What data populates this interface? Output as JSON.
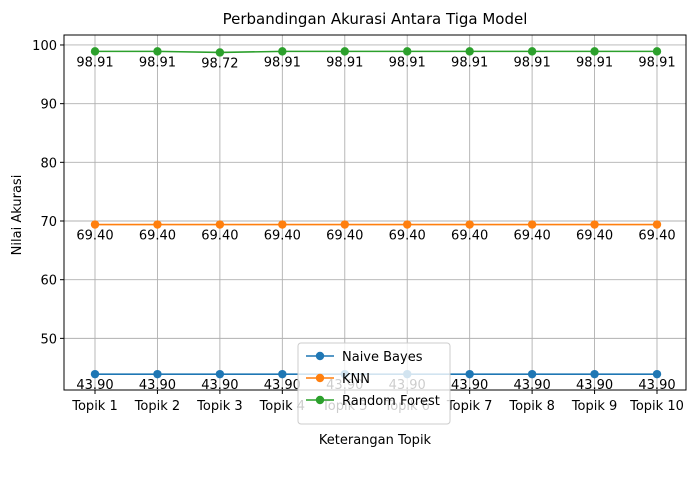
{
  "chart_data": {
    "type": "line",
    "title": "Perbandingan Akurasi Antara Tiga Model",
    "xlabel": "Keterangan Topik",
    "ylabel": "Nilai Akurasi",
    "categories": [
      "Topik 1",
      "Topik 2",
      "Topik 3",
      "Topik 4",
      "Topik 5",
      "Topik 6",
      "Topik 7",
      "Topik 8",
      "Topik 9",
      "Topik 10"
    ],
    "ylim": [
      41.2,
      101.7
    ],
    "yticks": [
      "50",
      "60",
      "70",
      "80",
      "90",
      "100"
    ],
    "grid": true,
    "legend_position": "lower-center",
    "series": [
      {
        "name": "Naive Bayes",
        "color": "#1f77b4",
        "values": [
          43.9,
          43.9,
          43.9,
          43.9,
          43.9,
          43.9,
          43.9,
          43.9,
          43.9,
          43.9
        ],
        "labels": [
          "43.90",
          "43.90",
          "43.90",
          "43.90",
          "43.90",
          "43.90",
          "43.90",
          "43.90",
          "43.90",
          "43.90"
        ]
      },
      {
        "name": "KNN",
        "color": "#ff7f0e",
        "values": [
          69.4,
          69.4,
          69.4,
          69.4,
          69.4,
          69.4,
          69.4,
          69.4,
          69.4,
          69.4
        ],
        "labels": [
          "69.40",
          "69.40",
          "69.40",
          "69.40",
          "69.40",
          "69.40",
          "69.40",
          "69.40",
          "69.40",
          "69.40"
        ]
      },
      {
        "name": "Random Forest",
        "color": "#2ca02c",
        "values": [
          98.91,
          98.91,
          98.72,
          98.91,
          98.91,
          98.91,
          98.91,
          98.91,
          98.91,
          98.91
        ],
        "labels": [
          "98.91",
          "98.91",
          "98.72",
          "98.91",
          "98.91",
          "98.91",
          "98.91",
          "98.91",
          "98.91",
          "98.91"
        ]
      }
    ]
  }
}
